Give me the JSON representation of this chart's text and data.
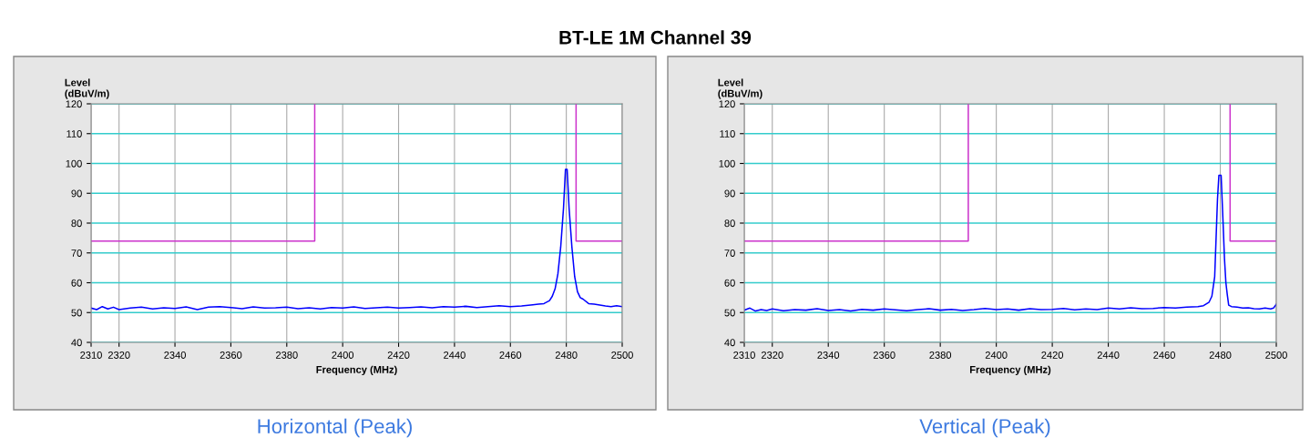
{
  "chart_data": [
    {
      "type": "line",
      "title": "BT-LE 1M Channel 39",
      "xlabel": "Frequency (MHz)",
      "ylabel": "Level\n(dBuV/m)",
      "annotations": [
        "Horizontal (Peak)"
      ],
      "xlim": [
        2310,
        2500
      ],
      "xticks": [
        2310,
        2320,
        2340,
        2360,
        2380,
        2400,
        2420,
        2440,
        2460,
        2480,
        2500
      ],
      "ylim": [
        40,
        120
      ],
      "yticks": [
        40,
        50,
        60,
        70,
        80,
        90,
        100,
        110,
        120
      ],
      "grid": true,
      "legend": false,
      "marker": "none",
      "line_style": "solid",
      "series": [
        {
          "color": "#0000ff",
          "x": [
            2310,
            2312,
            2314,
            2316,
            2318,
            2320,
            2324,
            2328,
            2332,
            2336,
            2340,
            2344,
            2348,
            2352,
            2356,
            2360,
            2364,
            2368,
            2372,
            2376,
            2380,
            2384,
            2388,
            2392,
            2396,
            2400,
            2404,
            2408,
            2412,
            2416,
            2420,
            2424,
            2428,
            2432,
            2436,
            2440,
            2444,
            2448,
            2452,
            2456,
            2460,
            2464,
            2468,
            2470,
            2472,
            2474,
            2475,
            2476,
            2477,
            2478,
            2479,
            2479.7,
            2480.3,
            2481,
            2482,
            2483,
            2484,
            2485,
            2486,
            2488,
            2490,
            2492,
            2494,
            2496,
            2498,
            2500
          ],
          "values": [
            51.5,
            51,
            52,
            51.2,
            51.8,
            51,
            51.5,
            51.8,
            51.2,
            51.6,
            51.4,
            51.9,
            51.0,
            51.8,
            52.0,
            51.7,
            51.3,
            51.9,
            51.5,
            51.6,
            51.8,
            51.3,
            51.6,
            51.2,
            51.7,
            51.5,
            51.9,
            51.4,
            51.6,
            51.8,
            51.5,
            51.7,
            51.9,
            51.6,
            52.0,
            51.8,
            52.1,
            51.7,
            52.0,
            52.3,
            52.0,
            52.2,
            52.6,
            52.8,
            53.0,
            54.0,
            55.5,
            58,
            63,
            72,
            85,
            98,
            98,
            85,
            72,
            62,
            57,
            55,
            54.5,
            53,
            52.8,
            52.5,
            52.2,
            52.0,
            52.3,
            52.0
          ]
        },
        {
          "color": "#cc33cc",
          "x": [
            2310,
            2390,
            2390,
            2437,
            2483.5,
            2483.5,
            2500
          ],
          "values": [
            74,
            74,
            120,
            null,
            120,
            74,
            74
          ]
        }
      ]
    },
    {
      "type": "line",
      "xlabel": "Frequency (MHz)",
      "ylabel": "Level\n(dBuV/m)",
      "annotations": [
        "Vertical (Peak)"
      ],
      "xlim": [
        2310,
        2500
      ],
      "xticks": [
        2310,
        2320,
        2340,
        2360,
        2380,
        2400,
        2420,
        2440,
        2460,
        2480,
        2500
      ],
      "ylim": [
        40,
        120
      ],
      "yticks": [
        40,
        50,
        60,
        70,
        80,
        90,
        100,
        110,
        120
      ],
      "grid": true,
      "legend": false,
      "marker": "none",
      "line_style": "solid",
      "series": [
        {
          "color": "#0000ff",
          "x": [
            2310,
            2312,
            2314,
            2316,
            2318,
            2320,
            2324,
            2328,
            2332,
            2336,
            2340,
            2344,
            2348,
            2352,
            2356,
            2360,
            2364,
            2368,
            2372,
            2376,
            2380,
            2384,
            2388,
            2392,
            2396,
            2400,
            2404,
            2408,
            2412,
            2416,
            2420,
            2424,
            2428,
            2432,
            2436,
            2440,
            2444,
            2448,
            2452,
            2456,
            2460,
            2464,
            2468,
            2472,
            2474,
            2476,
            2477,
            2478,
            2478.5,
            2479,
            2479.5,
            2480.3,
            2481,
            2481.5,
            2482,
            2482.5,
            2483,
            2484,
            2486,
            2488,
            2490,
            2492,
            2494,
            2496,
            2498,
            2499,
            2500
          ],
          "values": [
            50.8,
            51.5,
            50.5,
            51.0,
            50.7,
            51.2,
            50.6,
            51.0,
            50.8,
            51.3,
            50.7,
            51.0,
            50.5,
            51.1,
            50.8,
            51.2,
            50.9,
            50.6,
            51.0,
            51.3,
            50.8,
            51.1,
            50.7,
            51.0,
            51.4,
            51.0,
            51.2,
            50.8,
            51.3,
            51.0,
            51.1,
            51.4,
            50.9,
            51.2,
            51.0,
            51.5,
            51.2,
            51.6,
            51.3,
            51.4,
            51.7,
            51.5,
            51.8,
            52.0,
            52.3,
            53.5,
            55.5,
            62,
            75,
            88,
            96,
            96,
            80,
            68,
            60,
            56,
            52.5,
            52.0,
            51.8,
            51.5,
            51.6,
            51.3,
            51.2,
            51.5,
            51.2,
            51.5,
            52.8
          ]
        },
        {
          "color": "#cc33cc",
          "x": [
            2310,
            2390,
            2390,
            2437,
            2483.5,
            2483.5,
            2500
          ],
          "values": [
            74,
            74,
            120,
            null,
            120,
            74,
            74
          ]
        }
      ]
    }
  ]
}
